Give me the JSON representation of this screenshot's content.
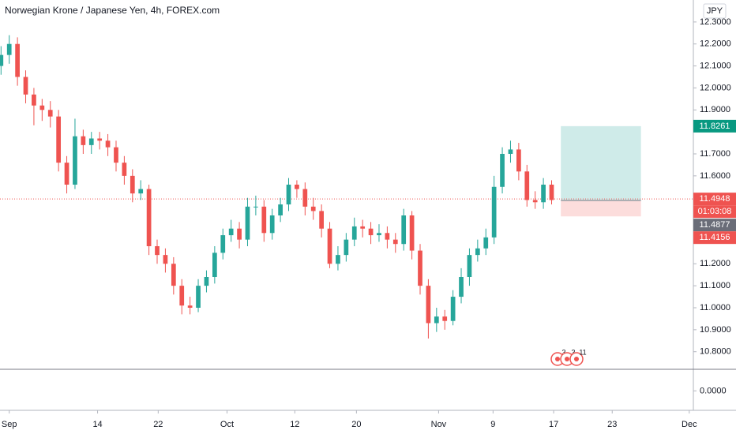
{
  "chart_data": {
    "type": "candlestick",
    "title": "Norwegian Krone / Japanese Yen, 4h, FOREX.com",
    "currency": "JPY",
    "up_color": "#26a69a",
    "down_color": "#ef5350",
    "x": [
      -0.8,
      0,
      0.8,
      1.6,
      2.4,
      3.2,
      4,
      4.8,
      5.6,
      6.4,
      7.2,
      8,
      8.8,
      9.6,
      10.4,
      11.2,
      12,
      12.8,
      13.6,
      14.4,
      15.2,
      16,
      16.8,
      17.6,
      18.4,
      19.2,
      20,
      20.8,
      21.6,
      22.4,
      23.2,
      24,
      24.8,
      25.6,
      26.4,
      27.2,
      28,
      28.8,
      29.6,
      30.4,
      31.2,
      32,
      32.8,
      33.6,
      34.4,
      35.2,
      36,
      36.8,
      37.6,
      38.4,
      39.2,
      40,
      40.8,
      41.6,
      42.4,
      43.2,
      44,
      44.8,
      45.6,
      46.4,
      47.2,
      48,
      48.8,
      49.6,
      50.4,
      51.2,
      52,
      52.8
    ],
    "open": [
      12.1,
      12.15,
      12.2,
      12.05,
      11.97,
      11.92,
      11.9,
      11.87,
      11.66,
      11.56,
      11.78,
      11.74,
      11.77,
      11.76,
      11.73,
      11.66,
      11.6,
      11.52,
      11.54,
      11.28,
      11.24,
      11.2,
      11.1,
      11.01,
      11.0,
      11.1,
      11.14,
      11.25,
      11.33,
      11.36,
      11.31,
      11.46,
      11.46,
      11.34,
      11.42,
      11.47,
      11.56,
      11.54,
      11.46,
      11.44,
      11.36,
      11.2,
      11.24,
      11.31,
      11.37,
      11.36,
      11.33,
      11.34,
      11.31,
      11.29,
      11.42,
      11.26,
      11.1,
      10.93,
      10.96,
      10.94,
      11.05,
      11.14,
      11.24,
      11.27,
      11.32,
      11.55,
      11.7,
      11.72,
      11.62,
      11.49,
      11.48,
      11.56
    ],
    "high": [
      12.19,
      12.24,
      12.23,
      12.08,
      12.0,
      11.95,
      11.94,
      11.9,
      11.69,
      11.86,
      11.81,
      11.8,
      11.8,
      11.79,
      11.76,
      11.69,
      11.63,
      11.58,
      11.56,
      11.31,
      11.27,
      11.23,
      11.13,
      11.05,
      11.13,
      11.17,
      11.28,
      11.36,
      11.4,
      11.39,
      11.5,
      11.51,
      11.49,
      11.45,
      11.5,
      11.59,
      11.58,
      11.57,
      11.5,
      11.47,
      11.39,
      11.28,
      11.34,
      11.41,
      11.4,
      11.39,
      11.38,
      11.37,
      11.34,
      11.45,
      11.44,
      11.29,
      11.13,
      11.0,
      10.99,
      11.08,
      11.18,
      11.27,
      11.31,
      11.36,
      11.6,
      11.73,
      11.76,
      11.75,
      11.65,
      11.53,
      11.59,
      11.58
    ],
    "low": [
      12.06,
      12.11,
      12.01,
      11.93,
      11.83,
      11.85,
      11.82,
      11.62,
      11.52,
      11.54,
      11.7,
      11.7,
      11.72,
      11.69,
      11.62,
      11.56,
      11.48,
      11.49,
      11.24,
      11.2,
      11.16,
      11.06,
      10.97,
      10.97,
      10.98,
      11.07,
      11.11,
      11.22,
      11.3,
      11.27,
      11.28,
      11.42,
      11.3,
      11.31,
      11.39,
      11.44,
      11.5,
      11.42,
      11.4,
      11.32,
      11.18,
      11.17,
      11.21,
      11.28,
      11.32,
      11.29,
      11.3,
      11.27,
      11.25,
      11.26,
      11.22,
      11.06,
      10.86,
      10.89,
      10.9,
      10.92,
      11.02,
      11.1,
      11.21,
      11.24,
      11.29,
      11.52,
      11.66,
      11.58,
      11.46,
      11.45,
      11.45,
      11.47
    ],
    "close": [
      12.15,
      12.2,
      12.05,
      11.97,
      11.92,
      11.9,
      11.87,
      11.66,
      11.56,
      11.78,
      11.74,
      11.77,
      11.76,
      11.73,
      11.66,
      11.6,
      11.52,
      11.54,
      11.28,
      11.24,
      11.2,
      11.1,
      11.01,
      11.0,
      11.1,
      11.14,
      11.25,
      11.33,
      11.36,
      11.31,
      11.46,
      11.46,
      11.34,
      11.42,
      11.47,
      11.56,
      11.54,
      11.46,
      11.44,
      11.36,
      11.2,
      11.24,
      11.31,
      11.37,
      11.36,
      11.33,
      11.34,
      11.31,
      11.29,
      11.42,
      11.26,
      11.1,
      10.93,
      10.96,
      10.94,
      11.05,
      11.14,
      11.24,
      11.27,
      11.32,
      11.55,
      11.7,
      11.72,
      11.62,
      11.49,
      11.48,
      11.56,
      11.49
    ],
    "xlim": [
      -0.9,
      66.6
    ],
    "xticks": [
      {
        "value": 0,
        "label": "Sep"
      },
      {
        "value": 8.6,
        "label": "14"
      },
      {
        "value": 14.5,
        "label": "22"
      },
      {
        "value": 21.2,
        "label": "Oct"
      },
      {
        "value": 27.8,
        "label": "12"
      },
      {
        "value": 33.8,
        "label": "20"
      },
      {
        "value": 41.8,
        "label": "Nov"
      },
      {
        "value": 47.1,
        "label": "9"
      },
      {
        "value": 53,
        "label": "17"
      },
      {
        "value": 58.7,
        "label": "23"
      },
      {
        "value": 66.2,
        "label": "Dec"
      }
    ],
    "ylim": [
      10.72,
      12.4
    ],
    "yticks": [
      {
        "value": 10.8,
        "label": "10.8000"
      },
      {
        "value": 10.9,
        "label": "10.9000"
      },
      {
        "value": 11.0,
        "label": "11.0000"
      },
      {
        "value": 11.1,
        "label": "11.1000"
      },
      {
        "value": 11.2,
        "label": "11.2000"
      },
      {
        "value": 11.6,
        "label": "11.6000"
      },
      {
        "value": 11.7,
        "label": "11.7000"
      },
      {
        "value": 11.9,
        "label": "11.9000"
      },
      {
        "value": 12.0,
        "label": "12.0000"
      },
      {
        "value": 12.1,
        "label": "12.1000"
      },
      {
        "value": 12.2,
        "label": "12.2000"
      },
      {
        "value": 12.3,
        "label": "12.3000"
      }
    ],
    "last_price": 11.4948,
    "countdown": "01:03:08",
    "position": {
      "target": 11.8261,
      "entry": 11.4877,
      "stop": 11.4156,
      "x_start": 53.7,
      "x_end": 61.5
    },
    "events": [
      "3",
      "3",
      "11"
    ],
    "lower_pane": {
      "ylim": [
        -0.9,
        1
      ],
      "yticks": [
        {
          "value": 0,
          "label": "0.0000"
        }
      ]
    }
  }
}
